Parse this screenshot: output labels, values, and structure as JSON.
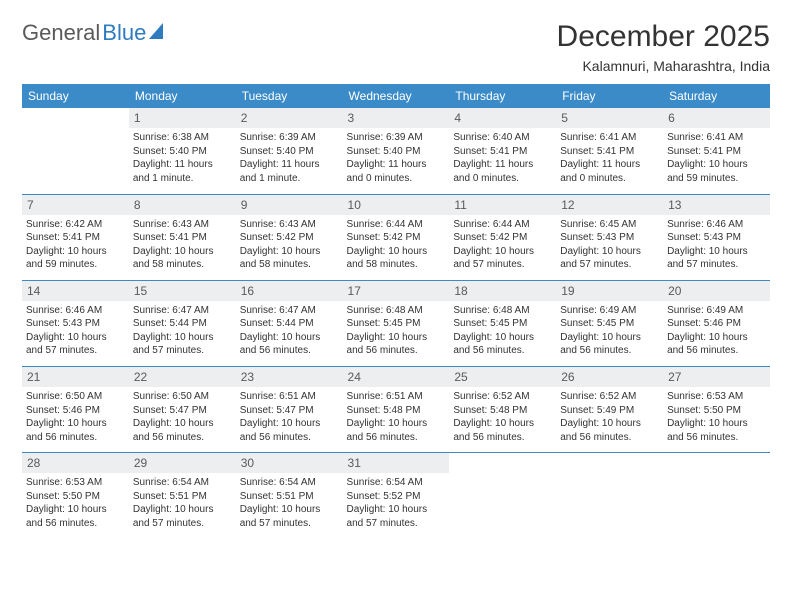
{
  "logo": {
    "text1": "General",
    "text2": "Blue"
  },
  "title": "December 2025",
  "location": "Kalamnuri, Maharashtra, India",
  "day_headers": [
    "Sunday",
    "Monday",
    "Tuesday",
    "Wednesday",
    "Thursday",
    "Friday",
    "Saturday"
  ],
  "colors": {
    "header_bg": "#3b8bc8",
    "daynum_bg": "#eceeef"
  },
  "weeks": [
    [
      {
        "n": "",
        "lines": []
      },
      {
        "n": "1",
        "lines": [
          "Sunrise: 6:38 AM",
          "Sunset: 5:40 PM",
          "Daylight: 11 hours and 1 minute."
        ]
      },
      {
        "n": "2",
        "lines": [
          "Sunrise: 6:39 AM",
          "Sunset: 5:40 PM",
          "Daylight: 11 hours and 1 minute."
        ]
      },
      {
        "n": "3",
        "lines": [
          "Sunrise: 6:39 AM",
          "Sunset: 5:40 PM",
          "Daylight: 11 hours and 0 minutes."
        ]
      },
      {
        "n": "4",
        "lines": [
          "Sunrise: 6:40 AM",
          "Sunset: 5:41 PM",
          "Daylight: 11 hours and 0 minutes."
        ]
      },
      {
        "n": "5",
        "lines": [
          "Sunrise: 6:41 AM",
          "Sunset: 5:41 PM",
          "Daylight: 11 hours and 0 minutes."
        ]
      },
      {
        "n": "6",
        "lines": [
          "Sunrise: 6:41 AM",
          "Sunset: 5:41 PM",
          "Daylight: 10 hours and 59 minutes."
        ]
      }
    ],
    [
      {
        "n": "7",
        "lines": [
          "Sunrise: 6:42 AM",
          "Sunset: 5:41 PM",
          "Daylight: 10 hours and 59 minutes."
        ]
      },
      {
        "n": "8",
        "lines": [
          "Sunrise: 6:43 AM",
          "Sunset: 5:41 PM",
          "Daylight: 10 hours and 58 minutes."
        ]
      },
      {
        "n": "9",
        "lines": [
          "Sunrise: 6:43 AM",
          "Sunset: 5:42 PM",
          "Daylight: 10 hours and 58 minutes."
        ]
      },
      {
        "n": "10",
        "lines": [
          "Sunrise: 6:44 AM",
          "Sunset: 5:42 PM",
          "Daylight: 10 hours and 58 minutes."
        ]
      },
      {
        "n": "11",
        "lines": [
          "Sunrise: 6:44 AM",
          "Sunset: 5:42 PM",
          "Daylight: 10 hours and 57 minutes."
        ]
      },
      {
        "n": "12",
        "lines": [
          "Sunrise: 6:45 AM",
          "Sunset: 5:43 PM",
          "Daylight: 10 hours and 57 minutes."
        ]
      },
      {
        "n": "13",
        "lines": [
          "Sunrise: 6:46 AM",
          "Sunset: 5:43 PM",
          "Daylight: 10 hours and 57 minutes."
        ]
      }
    ],
    [
      {
        "n": "14",
        "lines": [
          "Sunrise: 6:46 AM",
          "Sunset: 5:43 PM",
          "Daylight: 10 hours and 57 minutes."
        ]
      },
      {
        "n": "15",
        "lines": [
          "Sunrise: 6:47 AM",
          "Sunset: 5:44 PM",
          "Daylight: 10 hours and 57 minutes."
        ]
      },
      {
        "n": "16",
        "lines": [
          "Sunrise: 6:47 AM",
          "Sunset: 5:44 PM",
          "Daylight: 10 hours and 56 minutes."
        ]
      },
      {
        "n": "17",
        "lines": [
          "Sunrise: 6:48 AM",
          "Sunset: 5:45 PM",
          "Daylight: 10 hours and 56 minutes."
        ]
      },
      {
        "n": "18",
        "lines": [
          "Sunrise: 6:48 AM",
          "Sunset: 5:45 PM",
          "Daylight: 10 hours and 56 minutes."
        ]
      },
      {
        "n": "19",
        "lines": [
          "Sunrise: 6:49 AM",
          "Sunset: 5:45 PM",
          "Daylight: 10 hours and 56 minutes."
        ]
      },
      {
        "n": "20",
        "lines": [
          "Sunrise: 6:49 AM",
          "Sunset: 5:46 PM",
          "Daylight: 10 hours and 56 minutes."
        ]
      }
    ],
    [
      {
        "n": "21",
        "lines": [
          "Sunrise: 6:50 AM",
          "Sunset: 5:46 PM",
          "Daylight: 10 hours and 56 minutes."
        ]
      },
      {
        "n": "22",
        "lines": [
          "Sunrise: 6:50 AM",
          "Sunset: 5:47 PM",
          "Daylight: 10 hours and 56 minutes."
        ]
      },
      {
        "n": "23",
        "lines": [
          "Sunrise: 6:51 AM",
          "Sunset: 5:47 PM",
          "Daylight: 10 hours and 56 minutes."
        ]
      },
      {
        "n": "24",
        "lines": [
          "Sunrise: 6:51 AM",
          "Sunset: 5:48 PM",
          "Daylight: 10 hours and 56 minutes."
        ]
      },
      {
        "n": "25",
        "lines": [
          "Sunrise: 6:52 AM",
          "Sunset: 5:48 PM",
          "Daylight: 10 hours and 56 minutes."
        ]
      },
      {
        "n": "26",
        "lines": [
          "Sunrise: 6:52 AM",
          "Sunset: 5:49 PM",
          "Daylight: 10 hours and 56 minutes."
        ]
      },
      {
        "n": "27",
        "lines": [
          "Sunrise: 6:53 AM",
          "Sunset: 5:50 PM",
          "Daylight: 10 hours and 56 minutes."
        ]
      }
    ],
    [
      {
        "n": "28",
        "lines": [
          "Sunrise: 6:53 AM",
          "Sunset: 5:50 PM",
          "Daylight: 10 hours and 56 minutes."
        ]
      },
      {
        "n": "29",
        "lines": [
          "Sunrise: 6:54 AM",
          "Sunset: 5:51 PM",
          "Daylight: 10 hours and 57 minutes."
        ]
      },
      {
        "n": "30",
        "lines": [
          "Sunrise: 6:54 AM",
          "Sunset: 5:51 PM",
          "Daylight: 10 hours and 57 minutes."
        ]
      },
      {
        "n": "31",
        "lines": [
          "Sunrise: 6:54 AM",
          "Sunset: 5:52 PM",
          "Daylight: 10 hours and 57 minutes."
        ]
      },
      {
        "n": "",
        "lines": []
      },
      {
        "n": "",
        "lines": []
      },
      {
        "n": "",
        "lines": []
      }
    ]
  ]
}
